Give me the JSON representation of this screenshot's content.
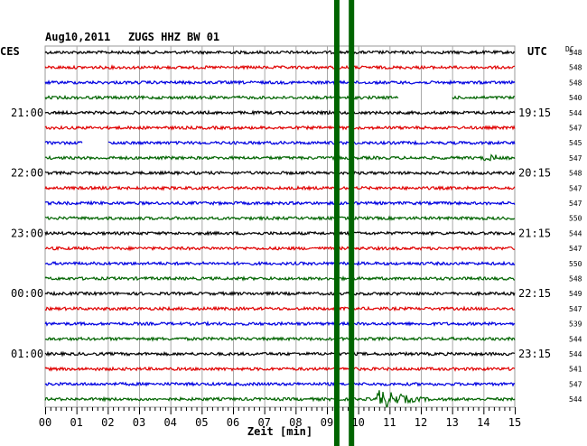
{
  "header": {
    "date": "Aug10,2011",
    "station": "ZUGS HHZ BW 01",
    "left_tz": "CES",
    "right_tz": "UTC",
    "dc_label": "DC"
  },
  "chart_data": {
    "type": "line",
    "title": "Aug10,2011   ZUGS HHZ BW 01",
    "xlabel": "Zeit [min]",
    "xlim": [
      0,
      15
    ],
    "x_ticks": [
      "00",
      "01",
      "02",
      "03",
      "04",
      "05",
      "06",
      "07",
      "08",
      "09",
      "10",
      "11",
      "12",
      "13",
      "14",
      "15"
    ],
    "left_time_labels": [
      {
        "label": "21:00",
        "trace": 4
      },
      {
        "label": "22:00",
        "trace": 8
      },
      {
        "label": "23:00",
        "trace": 12
      },
      {
        "label": "00:00",
        "trace": 16
      },
      {
        "label": "01:00",
        "trace": 20
      }
    ],
    "right_time_labels": [
      {
        "label": "19:15",
        "trace": 4
      },
      {
        "label": "20:15",
        "trace": 8
      },
      {
        "label": "21:15",
        "trace": 12
      },
      {
        "label": "22:15",
        "trace": 16
      },
      {
        "label": "23:15",
        "trace": 20
      }
    ],
    "trace_colors": [
      "#000000",
      "#e00000",
      "#0000e0",
      "#006400"
    ],
    "dc_values": [
      "548",
      "548",
      "548",
      "540",
      "544",
      "547",
      "545",
      "547",
      "548",
      "547",
      "547",
      "550",
      "544",
      "547",
      "550",
      "548",
      "549",
      "547",
      "539",
      "544",
      "544",
      "541",
      "547",
      "544"
    ],
    "gaps": [
      {
        "trace": 3,
        "start_min": 11.3,
        "end_min": 13.0
      },
      {
        "trace": 6,
        "start_min": 1.2,
        "end_min": 2.0
      }
    ],
    "events": [
      {
        "start_min": 9.2,
        "end_min": 9.9,
        "traces": [
          0,
          23
        ],
        "amplitude": "saturated"
      },
      {
        "start_min": 14.0,
        "end_min": 14.4,
        "traces": [
          7,
          7
        ],
        "amplitude": "small"
      },
      {
        "start_min": 10.6,
        "end_min": 12.6,
        "traces": [
          23,
          23
        ],
        "amplitude": "medium"
      }
    ],
    "grid": true
  }
}
